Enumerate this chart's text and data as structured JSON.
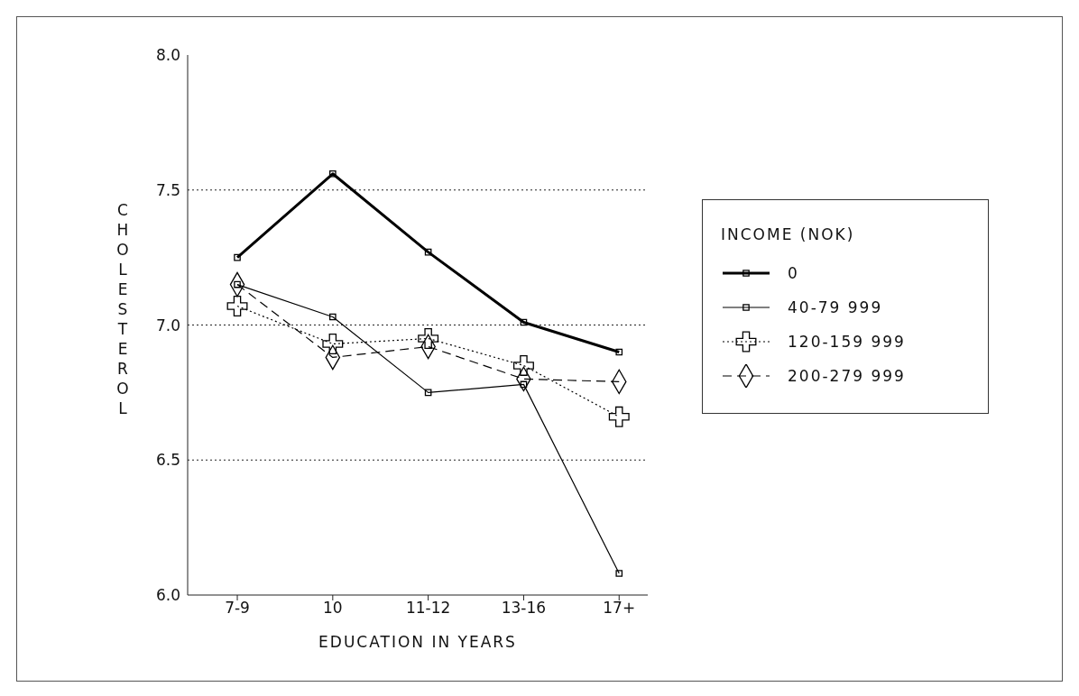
{
  "chart_data": {
    "type": "line",
    "xlabel": "EDUCATION IN YEARS",
    "ylabel": "CHOLESTEROL",
    "legend_title": "INCOME (NOK)",
    "categories": [
      "7-9",
      "10",
      "11-12",
      "13-16",
      "17+"
    ],
    "series": [
      {
        "name": "0",
        "color": "#000000",
        "marker": "square",
        "line_style": "solid",
        "values": [
          7.25,
          7.56,
          7.27,
          7.01,
          6.9
        ]
      },
      {
        "name": "40-79 999",
        "color": "#000000",
        "marker": "square",
        "line_style": "solid",
        "values": [
          7.15,
          7.03,
          6.75,
          6.78,
          6.08
        ]
      },
      {
        "name": "120-159 999",
        "color": "#000000",
        "marker": "cross",
        "line_style": "dotted",
        "values": [
          7.07,
          6.93,
          6.95,
          6.85,
          6.66
        ]
      },
      {
        "name": "200-279 999",
        "color": "#000000",
        "marker": "diamond",
        "line_style": "dashed",
        "values": [
          7.15,
          6.88,
          6.92,
          6.8,
          6.79
        ]
      }
    ],
    "ylim": [
      6,
      8
    ],
    "yticks": [
      {
        "value": 6,
        "label": "6.0"
      },
      6.5,
      {
        "value": 7,
        "label": "7.0"
      },
      7.5,
      {
        "value": 8,
        "label": "8.0"
      }
    ],
    "grid": "y",
    "legend": "right"
  }
}
